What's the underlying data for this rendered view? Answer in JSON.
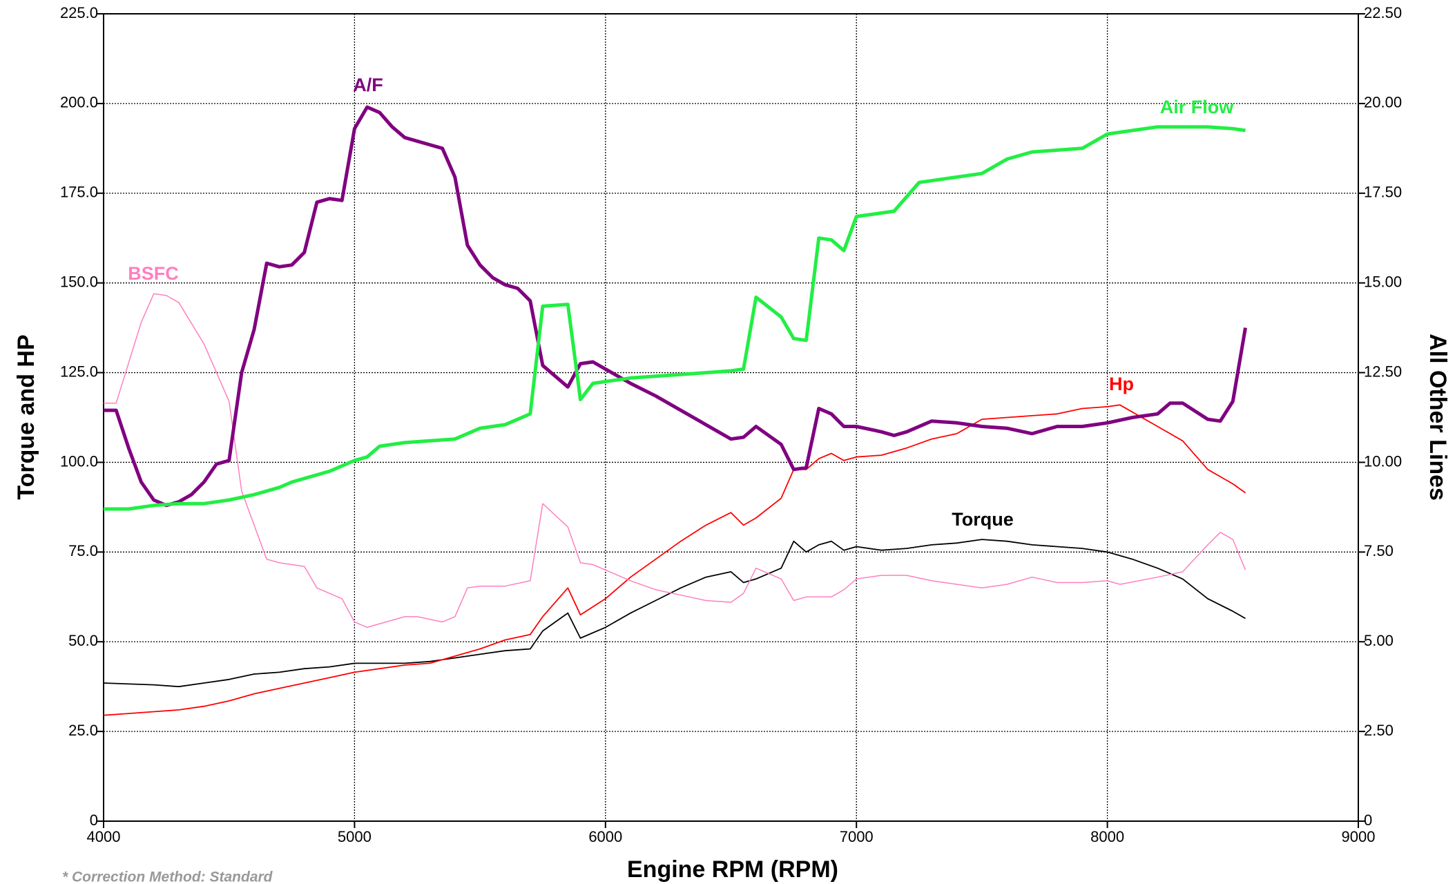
{
  "chart_data": {
    "type": "line",
    "xlabel": "Engine RPM (RPM)",
    "ylabel": "Torque and HP",
    "y2label": "All Other Lines",
    "footnote": "* Correction Method: Standard",
    "xlim": [
      4000,
      9000
    ],
    "xticks": [
      4000,
      5000,
      6000,
      7000,
      8000,
      9000
    ],
    "ylim": [
      0,
      225
    ],
    "yticks": [
      0,
      {
        "value": 25,
        "label": "25.0"
      },
      {
        "value": 50,
        "label": "50.0"
      },
      {
        "value": 75,
        "label": "75.0"
      },
      {
        "value": 100,
        "label": "100.0"
      },
      {
        "value": 125,
        "label": "125.0"
      },
      {
        "value": 150,
        "label": "150.0"
      },
      {
        "value": 175,
        "label": "175.0"
      },
      {
        "value": 200,
        "label": "200.0"
      },
      {
        "value": 225,
        "label": "225.0"
      }
    ],
    "y2lim": [
      0,
      22.5
    ],
    "y2ticks": [
      0,
      {
        "value": 2.5,
        "label": "2.50"
      },
      {
        "value": 5,
        "label": "5.00"
      },
      {
        "value": 7.5,
        "label": "7.50"
      },
      {
        "value": 10,
        "label": "10.00"
      },
      {
        "value": 12.5,
        "label": "12.50"
      },
      {
        "value": 15,
        "label": "15.00"
      },
      {
        "value": 17.5,
        "label": "17.50"
      },
      {
        "value": 20,
        "label": "20.00"
      },
      {
        "value": 22.5,
        "label": "22.50"
      }
    ],
    "grid": true,
    "series": [
      {
        "name": "Torque",
        "color": "#000000",
        "axis": "y",
        "x": [
          4000,
          4200,
          4300,
          4400,
          4500,
          4600,
          4700,
          4800,
          4900,
          5000,
          5100,
          5200,
          5300,
          5400,
          5500,
          5600,
          5700,
          5750,
          5850,
          5900,
          6000,
          6100,
          6200,
          6300,
          6400,
          6500,
          6550,
          6600,
          6700,
          6750,
          6800,
          6850,
          6900,
          6950,
          7000,
          7100,
          7200,
          7300,
          7400,
          7500,
          7600,
          7700,
          7800,
          7900,
          8000,
          8100,
          8200,
          8300,
          8400,
          8500,
          8550
        ],
        "values": [
          38.5,
          38,
          37.5,
          38.5,
          39.5,
          41,
          41.5,
          42.5,
          43,
          44,
          44,
          44,
          44.5,
          45.5,
          46.5,
          47.5,
          48,
          53,
          58,
          51,
          54,
          58,
          61.5,
          65,
          68,
          69.5,
          66.5,
          67.5,
          70.5,
          78,
          75,
          77,
          78,
          75.5,
          76.5,
          75.5,
          76,
          77,
          77.5,
          78.5,
          78,
          77,
          76.5,
          76,
          75,
          73,
          70.5,
          67.5,
          62,
          58.5,
          56.5
        ]
      },
      {
        "name": "Hp",
        "color": "#ff0000",
        "axis": "y",
        "x": [
          4000,
          4100,
          4200,
          4300,
          4400,
          4500,
          4600,
          4700,
          4800,
          4900,
          5000,
          5100,
          5200,
          5300,
          5400,
          5500,
          5600,
          5700,
          5750,
          5850,
          5900,
          6000,
          6100,
          6200,
          6300,
          6400,
          6500,
          6550,
          6600,
          6700,
          6750,
          6800,
          6850,
          6900,
          6950,
          7000,
          7100,
          7200,
          7300,
          7400,
          7500,
          7600,
          7700,
          7800,
          7900,
          8000,
          8050,
          8100,
          8200,
          8300,
          8400,
          8500,
          8550
        ],
        "values": [
          29.5,
          30,
          30.5,
          31,
          32,
          33.5,
          35.5,
          37,
          38.5,
          40,
          41.5,
          42.5,
          43.5,
          44,
          46,
          48,
          50.5,
          52,
          57,
          65,
          57.5,
          62,
          68,
          73,
          78,
          82.5,
          86,
          82.5,
          84.5,
          90,
          98,
          98,
          101,
          102.5,
          100.5,
          101.5,
          102,
          104,
          106.5,
          108,
          112,
          112.5,
          113,
          113.5,
          115,
          115.5,
          116,
          114,
          110,
          106,
          98,
          94,
          91.5
        ]
      },
      {
        "name": "BSFC",
        "color": "#ff7fbf",
        "axis": "y2",
        "x": [
          4000,
          4050,
          4150,
          4200,
          4250,
          4300,
          4400,
          4500,
          4550,
          4650,
          4700,
          4800,
          4850,
          4950,
          5000,
          5050,
          5200,
          5250,
          5350,
          5400,
          5450,
          5500,
          5600,
          5700,
          5750,
          5850,
          5900,
          5950,
          6000,
          6100,
          6200,
          6300,
          6400,
          6500,
          6550,
          6600,
          6700,
          6750,
          6800,
          6900,
          6950,
          7000,
          7100,
          7200,
          7300,
          7400,
          7500,
          7600,
          7700,
          7800,
          7900,
          8000,
          8050,
          8200,
          8300,
          8400,
          8450,
          8500,
          8550
        ],
        "values": [
          11.65,
          11.65,
          13.9,
          14.7,
          14.65,
          14.45,
          13.3,
          11.7,
          9.2,
          7.3,
          7.2,
          7.1,
          6.5,
          6.2,
          5.55,
          5.4,
          5.7,
          5.7,
          5.55,
          5.7,
          6.5,
          6.55,
          6.55,
          6.7,
          8.85,
          8.2,
          7.2,
          7.15,
          7,
          6.7,
          6.45,
          6.3,
          6.15,
          6.1,
          6.35,
          7.05,
          6.75,
          6.15,
          6.25,
          6.25,
          6.45,
          6.75,
          6.85,
          6.85,
          6.7,
          6.6,
          6.5,
          6.6,
          6.8,
          6.65,
          6.65,
          6.7,
          6.6,
          6.8,
          6.95,
          7.7,
          8.05,
          7.85,
          7
        ]
      },
      {
        "name": "A/F",
        "color": "#800080",
        "axis": "y2",
        "x": [
          4000,
          4050,
          4100,
          4150,
          4200,
          4250,
          4300,
          4350,
          4400,
          4450,
          4500,
          4550,
          4600,
          4650,
          4700,
          4750,
          4800,
          4850,
          4900,
          4950,
          5000,
          5050,
          5100,
          5150,
          5200,
          5300,
          5350,
          5400,
          5450,
          5500,
          5550,
          5600,
          5650,
          5700,
          5750,
          5850,
          5900,
          5950,
          6000,
          6100,
          6200,
          6300,
          6400,
          6500,
          6550,
          6600,
          6700,
          6750,
          6800,
          6850,
          6900,
          6950,
          7000,
          7100,
          7150,
          7200,
          7300,
          7400,
          7500,
          7600,
          7700,
          7800,
          7900,
          8000,
          8100,
          8200,
          8250,
          8300,
          8400,
          8450,
          8500,
          8550
        ],
        "values": [
          11.45,
          11.45,
          10.4,
          9.45,
          8.95,
          8.8,
          8.9,
          9.1,
          9.45,
          9.95,
          10.05,
          12.5,
          13.7,
          15.55,
          15.45,
          15.5,
          15.85,
          17.25,
          17.35,
          17.3,
          19.3,
          19.9,
          19.75,
          19.35,
          19.05,
          18.85,
          18.75,
          17.95,
          16.05,
          15.5,
          15.15,
          14.95,
          14.85,
          14.5,
          12.7,
          12.1,
          12.75,
          12.8,
          12.6,
          12.2,
          11.85,
          11.45,
          11.05,
          10.65,
          10.7,
          11,
          10.5,
          9.8,
          9.85,
          11.5,
          11.35,
          11,
          11,
          10.85,
          10.75,
          10.85,
          11.15,
          11.1,
          11,
          10.95,
          10.8,
          11,
          11,
          11.1,
          11.25,
          11.35,
          11.65,
          11.65,
          11.2,
          11.15,
          11.7,
          13.75
        ]
      },
      {
        "name": "Air Flow",
        "color": "#22ee44",
        "axis": "y2",
        "x": [
          4000,
          4100,
          4200,
          4300,
          4400,
          4500,
          4600,
          4700,
          4750,
          4800,
          4900,
          5000,
          5050,
          5100,
          5200,
          5300,
          5400,
          5500,
          5600,
          5700,
          5750,
          5850,
          5900,
          5950,
          6000,
          6100,
          6200,
          6300,
          6400,
          6500,
          6550,
          6600,
          6700,
          6750,
          6800,
          6850,
          6900,
          6950,
          7000,
          7100,
          7150,
          7250,
          7400,
          7500,
          7600,
          7700,
          7800,
          7900,
          8000,
          8100,
          8200,
          8300,
          8400,
          8500,
          8550
        ],
        "values": [
          8.7,
          8.7,
          8.8,
          8.85,
          8.85,
          8.95,
          9.1,
          9.3,
          9.45,
          9.55,
          9.75,
          10.05,
          10.15,
          10.45,
          10.55,
          10.6,
          10.65,
          10.95,
          11.05,
          11.35,
          14.35,
          14.4,
          11.75,
          12.2,
          12.25,
          12.35,
          12.4,
          12.45,
          12.5,
          12.55,
          12.6,
          14.6,
          14.05,
          13.45,
          13.4,
          16.25,
          16.2,
          15.9,
          16.85,
          16.95,
          17,
          17.8,
          17.95,
          18.05,
          18.45,
          18.65,
          18.7,
          18.75,
          19.15,
          19.25,
          19.35,
          19.35,
          19.35,
          19.3,
          19.25
        ]
      }
    ]
  }
}
